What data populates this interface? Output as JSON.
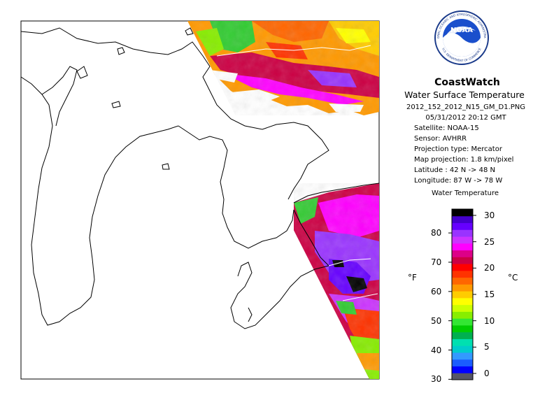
{
  "brand": "CoastWatch",
  "product": "Water Surface Temperature",
  "filename": "2012_152_2012_N15_GM_D1.PNG",
  "datetime": "05/31/2012  20:12 GMT",
  "satellite": "Satellite: NOAA-15",
  "sensor": "Sensor: AVHRR",
  "projection_type": "Projection type:  Mercator",
  "map_projection": "Map projection: 1.8 km/pixel",
  "latitude": "Latitude : 42 N -> 48 N",
  "longitude": "Longitude: 87 W -> 78 W",
  "legend": {
    "title": "Water Temperature",
    "fahrenheit_unit": "°F",
    "celsius_unit": "°C",
    "fahrenheit_ticks": [
      "30",
      "40",
      "50",
      "60",
      "70",
      "80"
    ],
    "celsius_ticks": [
      "0",
      "5",
      "10",
      "15",
      "20",
      "25",
      "30"
    ],
    "colors": [
      "#555566",
      "#0000ff",
      "#1a5cff",
      "#3399ff",
      "#00cccc",
      "#00e0b0",
      "#00b050",
      "#00cc00",
      "#33e633",
      "#88ee00",
      "#ccff00",
      "#ffff00",
      "#ffcc00",
      "#ff9900",
      "#ff6600",
      "#ff3300",
      "#ff0000",
      "#cc0044",
      "#dd0088",
      "#ff00ff",
      "#cc33ff",
      "#9933ff",
      "#6600ff",
      "#4400cc",
      "#000000"
    ]
  },
  "logo": {
    "text": "NOAA",
    "ring_top": "NATIONAL OCEANIC AND ATMOSPHERIC ADMINISTRATION",
    "ring_bottom": "U.S. DEPARTMENT OF COMMERCE"
  }
}
